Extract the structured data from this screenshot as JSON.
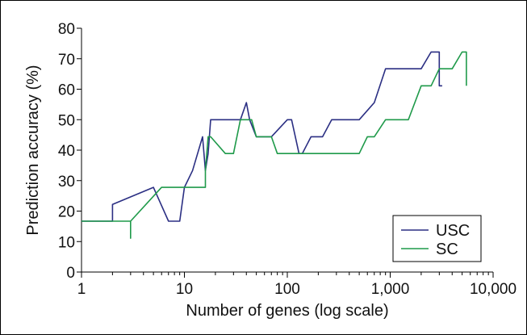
{
  "chart_data": {
    "type": "line",
    "xlabel": "Number of genes (log scale)",
    "ylabel": "Prediction accuracy (%)",
    "xscale": "log",
    "xlim": [
      1,
      10000
    ],
    "ylim": [
      0,
      80
    ],
    "xticks": [
      1,
      10,
      100,
      1000,
      10000
    ],
    "xtick_labels": [
      "1",
      "10",
      "100",
      "1,000",
      "10,000"
    ],
    "yticks": [
      0,
      10,
      20,
      30,
      40,
      50,
      60,
      70,
      80
    ],
    "ytick_labels": [
      "0",
      "10",
      "20",
      "30",
      "40",
      "50",
      "60",
      "70",
      "80"
    ],
    "grid": false,
    "legend_position": "bottom-right",
    "series": [
      {
        "name": "USC",
        "color": "#2b2f83",
        "x": [
          1,
          2,
          2,
          5,
          7,
          9,
          10,
          12,
          15,
          16,
          17,
          18,
          35,
          40,
          43,
          50,
          70,
          100,
          110,
          130,
          140,
          170,
          200,
          220,
          270,
          300,
          500,
          700,
          900,
          1000,
          2000,
          2500,
          3000,
          3000,
          3200
        ],
        "y": [
          16.7,
          16.7,
          22.2,
          27.8,
          16.7,
          16.7,
          27.8,
          33.3,
          44.4,
          33.3,
          38.9,
          50,
          50,
          55.6,
          50,
          44.4,
          44.4,
          50,
          50,
          38.9,
          38.9,
          44.4,
          44.4,
          44.4,
          50,
          50,
          50,
          55.6,
          66.7,
          66.7,
          66.7,
          72.2,
          72.2,
          61.1,
          61.1
        ]
      },
      {
        "name": "SC",
        "color": "#1f9a4a",
        "x": [
          1,
          3,
          3,
          3,
          6,
          16,
          16,
          16,
          17,
          18,
          25,
          30,
          35,
          45,
          50,
          70,
          80,
          100,
          200,
          250,
          500,
          600,
          700,
          900,
          1000,
          1500,
          2000,
          2500,
          3000,
          4000,
          5000,
          5500,
          5500
        ],
        "y": [
          16.7,
          16.7,
          11.1,
          16.7,
          27.8,
          27.8,
          27.8,
          33.3,
          44.4,
          44.4,
          38.9,
          38.9,
          50,
          50,
          44.4,
          44.4,
          38.9,
          38.9,
          38.9,
          38.9,
          38.9,
          44.4,
          44.4,
          50,
          50,
          50,
          61.1,
          61.1,
          66.7,
          66.7,
          72.2,
          72.2,
          61.1
        ]
      }
    ]
  }
}
